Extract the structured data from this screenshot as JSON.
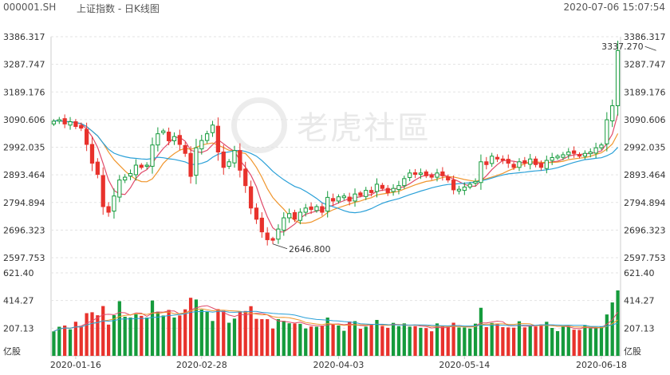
{
  "header": {
    "code": "000001.SH",
    "name": "上证指数 - 日K线图",
    "datetime": "2020-07-06 15:07:54"
  },
  "watermark": "老虎社區",
  "colors": {
    "up": "#e8322c",
    "down": "#159b3c",
    "ma5": "#e04a6a",
    "ma10": "#f0962e",
    "ma20": "#2aa0d8",
    "grid": "#e3e3e3",
    "axis_text": "#333333"
  },
  "chart_data": {
    "type": "candlestick",
    "price_axis": {
      "ticks": [
        "3386.317",
        "3287.747",
        "3189.176",
        "3090.606",
        "2992.035",
        "2893.464",
        "2794.894",
        "2696.323",
        "2597.753"
      ],
      "range": [
        2597.753,
        3386.317
      ]
    },
    "volume_axis": {
      "ticks": [
        "621.40",
        "414.27",
        "207.13"
      ],
      "range": [
        0,
        621.4
      ],
      "unit": "亿股"
    },
    "x_ticks": [
      {
        "label": "2020-01-16",
        "index": 4
      },
      {
        "label": "2020-02-28",
        "index": 27
      },
      {
        "label": "2020-04-03",
        "index": 52
      },
      {
        "label": "2020-05-14",
        "index": 75
      },
      {
        "label": "2020-06-18",
        "index": 100
      }
    ],
    "annotations": [
      {
        "label": "3337.270",
        "index": 110,
        "value": 3337.27,
        "kind": "high"
      },
      {
        "label": "2646.800",
        "index": 40,
        "value": 2646.8,
        "kind": "low"
      }
    ],
    "closes": [
      3085,
      3090,
      3075,
      3083,
      3066,
      3060,
      3002,
      2935,
      2895,
      2780,
      2760,
      2818,
      2875,
      2885,
      2898,
      2928,
      2920,
      2928,
      3000,
      3040,
      3050,
      3015,
      3030,
      3002,
      2970,
      2888,
      2990,
      3016,
      3040,
      3071,
      2975,
      2920,
      2940,
      2980,
      2910,
      2855,
      2775,
      2735,
      2690,
      2662,
      2660,
      2700,
      2740,
      2755,
      2735,
      2760,
      2775,
      2770,
      2780,
      2760,
      2813,
      2800,
      2815,
      2818,
      2800,
      2825,
      2820,
      2838,
      2830,
      2860,
      2845,
      2830,
      2845,
      2855,
      2880,
      2900,
      2895,
      2900,
      2890,
      2885,
      2900,
      2890,
      2875,
      2840,
      2842,
      2850,
      2860,
      2870,
      2940,
      2930,
      2960,
      2950,
      2945,
      2935,
      2920,
      2940,
      2935,
      2950,
      2930,
      2920,
      2945,
      2955,
      2960,
      2965,
      2975,
      2970,
      2960,
      2970,
      2975,
      2990,
      3000,
      3090,
      3140,
      3337
    ]
  }
}
